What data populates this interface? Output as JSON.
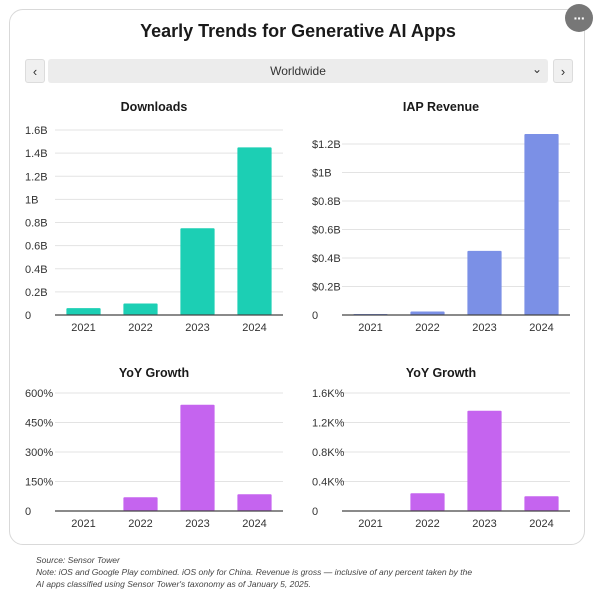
{
  "header": {
    "title": "Yearly Trends for Generative AI Apps",
    "more_label": "···",
    "prev_label": "‹",
    "next_label": "›",
    "region_value": "Worldwide",
    "chevron_glyph": "⌄"
  },
  "footnote": {
    "line1": "Source: Sensor Tower",
    "line2": "Note: iOS and Google Play combined. iOS only for China. Revenue is gross — inclusive of any percent taken by the",
    "line3": "AI apps classified using Sensor Tower's taxonomy as of January 5, 2025."
  },
  "chart_data": [
    {
      "type": "bar",
      "title": "Downloads",
      "categories": [
        "2021",
        "2022",
        "2023",
        "2024"
      ],
      "values": [
        0.06,
        0.1,
        0.75,
        1.45
      ],
      "ylim": [
        0,
        1.6
      ],
      "yticks": [
        0,
        0.2,
        0.4,
        0.6,
        0.8,
        1.0,
        1.2,
        1.4,
        1.6
      ],
      "ytick_labels": [
        "0",
        "0.2B",
        "0.4B",
        "0.6B",
        "0.8B",
        "1B",
        "1.2B",
        "1.4B",
        "1.6B"
      ],
      "color": "#1ccfb4",
      "xlabel": "",
      "ylabel": ""
    },
    {
      "type": "bar",
      "title": "IAP Revenue",
      "categories": [
        "2021",
        "2022",
        "2023",
        "2024"
      ],
      "values": [
        0.007,
        0.025,
        0.45,
        1.27
      ],
      "ylim": [
        0,
        1.2
      ],
      "yticks": [
        0,
        0.2,
        0.4,
        0.6,
        0.8,
        1.0,
        1.2
      ],
      "ytick_labels": [
        "0",
        "$0.2B",
        "$0.4B",
        "$0.6B",
        "$0.8B",
        "$1B",
        "$1.2B"
      ],
      "color": "#7b90e6",
      "xlabel": "",
      "ylabel": ""
    },
    {
      "type": "bar",
      "title": "YoY Growth",
      "categories": [
        "2021",
        "2022",
        "2023",
        "2024"
      ],
      "values": [
        0,
        70,
        540,
        85
      ],
      "ylim": [
        0,
        600
      ],
      "yticks": [
        0,
        150,
        300,
        450,
        600
      ],
      "ytick_labels": [
        "0",
        "150%",
        "300%",
        "450%",
        "600%"
      ],
      "color": "#c564ef",
      "xlabel": "",
      "ylabel": ""
    },
    {
      "type": "bar",
      "title": "YoY Growth",
      "categories": [
        "2021",
        "2022",
        "2023",
        "2024"
      ],
      "values": [
        0,
        240,
        1360,
        200
      ],
      "ylim": [
        0,
        1600
      ],
      "yticks": [
        0,
        400,
        800,
        1200,
        1600
      ],
      "ytick_labels": [
        "0",
        "0.4K%",
        "0.8K%",
        "1.2K%",
        "1.6K%"
      ],
      "color": "#c564ef",
      "xlabel": "",
      "ylabel": ""
    }
  ]
}
